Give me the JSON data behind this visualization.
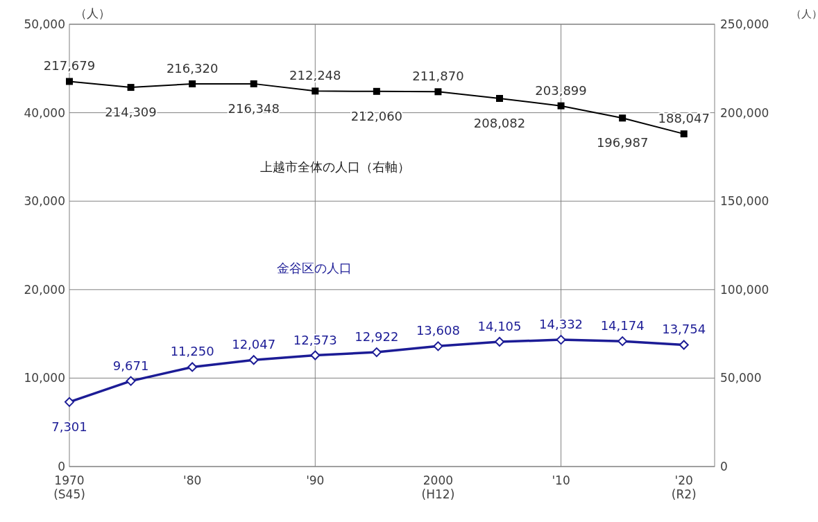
{
  "chart_data": {
    "type": "line",
    "x": [
      1970,
      1975,
      1980,
      1985,
      1990,
      1995,
      2000,
      2005,
      2010,
      2015,
      2020
    ],
    "xlim": [
      1970,
      2022.5
    ],
    "xticks": [
      {
        "value": 1970,
        "label": "1970\n(S45)"
      },
      {
        "value": 1980,
        "label": "'80"
      },
      {
        "value": 1990,
        "label": "'90"
      },
      {
        "value": 2000,
        "label": "2000\n(H12)"
      },
      {
        "value": 2010,
        "label": "'10"
      },
      {
        "value": 2020,
        "label": "'20\n(R2)"
      }
    ],
    "ylim": [
      0,
      50000
    ],
    "yticks": [
      {
        "value": 0,
        "label": "0"
      },
      {
        "value": 10000,
        "label": "10,000"
      },
      {
        "value": 20000,
        "label": "20,000"
      },
      {
        "value": 30000,
        "label": "30,000"
      },
      {
        "value": 40000,
        "label": "40,000"
      },
      {
        "value": 50000,
        "label": "50,000"
      }
    ],
    "y2lim": [
      0,
      250000
    ],
    "y2ticks": [
      {
        "value": 0,
        "label": "0"
      },
      {
        "value": 50000,
        "label": "50,000"
      },
      {
        "value": 100000,
        "label": "100,000"
      },
      {
        "value": 150000,
        "label": "150,000"
      },
      {
        "value": 200000,
        "label": "200,000"
      },
      {
        "value": 250000,
        "label": "250,000"
      }
    ],
    "ylabel": "（人）",
    "y2label": "（人）",
    "grid": "y",
    "line_style": "solid",
    "ref_lines": [
      {
        "axis": "x",
        "value": 1990,
        "color": "#808080"
      },
      {
        "axis": "x",
        "value": 2010,
        "color": "#808080"
      }
    ],
    "series": [
      {
        "name": "金谷区の人口",
        "color": "#1c1c96",
        "marker": "diamond",
        "values": [
          7301,
          9671,
          11250,
          12047,
          12573,
          12922,
          13608,
          14105,
          14332,
          14174,
          13754
        ],
        "value_labels": [
          "7,301",
          "9,671",
          "11,250",
          "12,047",
          "12,573",
          "12,922",
          "13,608",
          "14,105",
          "14,332",
          "14,174",
          "13,754"
        ]
      },
      {
        "name": "上越市全体の人口（右軸）",
        "color": "#000000",
        "marker": "square",
        "axis": "y2",
        "values": [
          217679,
          214309,
          216320,
          216348,
          212248,
          212060,
          211870,
          208082,
          203899,
          196987,
          188047
        ],
        "value_labels": [
          "217,679",
          "214,309",
          "216,320",
          "216,348",
          "212,248",
          "212,060",
          "211,870",
          "208,082",
          "203,899",
          "196,987",
          "188,047"
        ]
      }
    ]
  }
}
